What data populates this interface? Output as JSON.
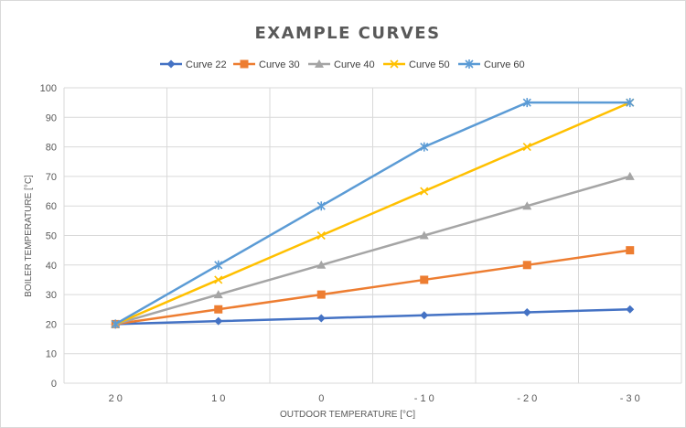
{
  "chart_data": {
    "type": "line",
    "title": "EXAMPLE CURVES",
    "xlabel": "OUTDOOR TEMPERATURE [°C]",
    "ylabel": "BOILER TEMPERATURE [°C]",
    "categories": [
      "20",
      "10",
      "0",
      "-10",
      "-20",
      "-30"
    ],
    "x_tick_labels": [
      "2 0",
      "1 0",
      "0",
      "- 1 0",
      "- 2 0",
      "- 3 0"
    ],
    "ylim": [
      0,
      100
    ],
    "y_ticks": [
      0,
      10,
      20,
      30,
      40,
      50,
      60,
      70,
      80,
      90,
      100
    ],
    "grid": true,
    "legend_position": "top",
    "series": [
      {
        "name": "Curve 22",
        "color": "#4472C4",
        "marker": "diamond",
        "values": [
          20,
          21,
          22,
          23,
          24,
          25
        ]
      },
      {
        "name": "Curve 30",
        "color": "#ED7D31",
        "marker": "square",
        "values": [
          20,
          25,
          30,
          35,
          40,
          45
        ]
      },
      {
        "name": "Curve 40",
        "color": "#A5A5A5",
        "marker": "triangle",
        "values": [
          20,
          30,
          40,
          50,
          60,
          70
        ]
      },
      {
        "name": "Curve 50",
        "color": "#FFC000",
        "marker": "x",
        "values": [
          20,
          35,
          50,
          65,
          80,
          95
        ]
      },
      {
        "name": "Curve 60",
        "color": "#5B9BD5",
        "marker": "star",
        "values": [
          20,
          40,
          60,
          80,
          95,
          95
        ]
      }
    ]
  }
}
